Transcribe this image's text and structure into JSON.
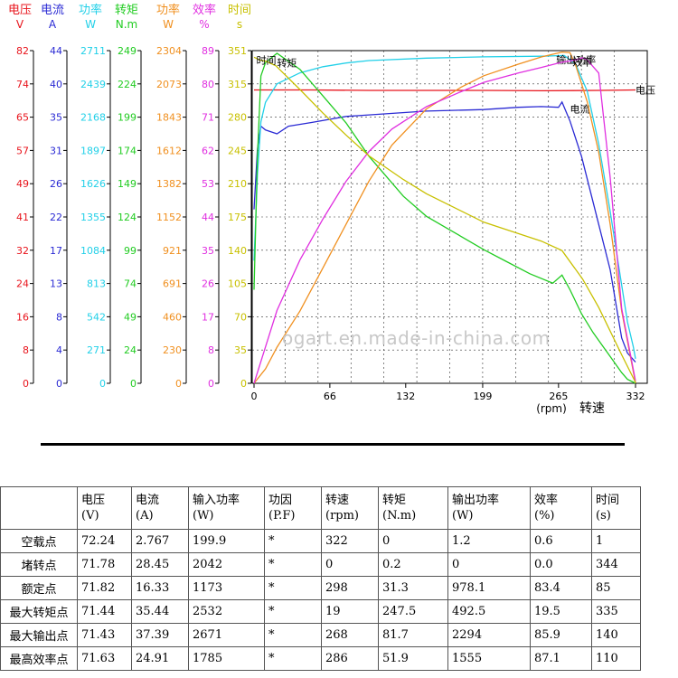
{
  "chart_data": {
    "type": "line",
    "x_label": "(rpm) 转速",
    "x_axis_label_parts": [
      "(rpm)",
      "转速"
    ],
    "x_ticks": [
      0,
      66,
      132,
      199,
      265,
      332
    ],
    "xlim": [
      0,
      332
    ],
    "grid": true,
    "axes": [
      {
        "key": "voltage",
        "title": "电压",
        "unit": "V",
        "color": "#e8141c",
        "ticks": [
          "0",
          "8",
          "16",
          "24",
          "32",
          "41",
          "49",
          "57",
          "65",
          "74",
          "82"
        ]
      },
      {
        "key": "current",
        "title": "电流",
        "unit": "A",
        "color": "#2a2ad4",
        "ticks": [
          "0",
          "4",
          "8",
          "13",
          "17",
          "22",
          "26",
          "31",
          "35",
          "40",
          "44"
        ]
      },
      {
        "key": "input_power",
        "title": "功率",
        "unit": "W",
        "color": "#22d0e8",
        "ticks": [
          "0",
          "271",
          "542",
          "813",
          "1084",
          "1355",
          "1626",
          "1897",
          "2168",
          "2439",
          "2711"
        ]
      },
      {
        "key": "torque",
        "title": "转矩",
        "unit": "N.m",
        "color": "#22cc22",
        "ticks": [
          "0",
          "24",
          "49",
          "74",
          "99",
          "124",
          "149",
          "174",
          "199",
          "224",
          "249"
        ]
      },
      {
        "key": "output_power",
        "title": "功率",
        "unit": "W",
        "color": "#f09020",
        "ticks": [
          "0",
          "230",
          "460",
          "691",
          "921",
          "1152",
          "1382",
          "1612",
          "1843",
          "2073",
          "2304"
        ]
      },
      {
        "key": "efficiency",
        "title": "效率",
        "unit": "%",
        "color": "#e030e0",
        "ticks": [
          "0",
          "8",
          "17",
          "26",
          "35",
          "44",
          "53",
          "62",
          "71",
          "80",
          "89"
        ]
      },
      {
        "key": "time",
        "title": "时间",
        "unit": "s",
        "color": "#c8c000",
        "ticks": [
          "0",
          "35",
          "70",
          "105",
          "140",
          "175",
          "210",
          "245",
          "280",
          "315",
          "351"
        ]
      }
    ],
    "series": [
      {
        "name": "电压",
        "color": "#e8141c",
        "axis": "voltage",
        "x": [
          0,
          50,
          100,
          150,
          200,
          250,
          300,
          332
        ],
        "y": [
          72.3,
          72.3,
          72.2,
          72.2,
          72.2,
          72.1,
          72.2,
          72.3
        ]
      },
      {
        "name": "电流",
        "color": "#2a2ad4",
        "axis": "current",
        "x": [
          0,
          3,
          6,
          10,
          20,
          30,
          50,
          80,
          100,
          150,
          200,
          230,
          250,
          265,
          268,
          275,
          285,
          295,
          310,
          320,
          325,
          332
        ],
        "y": [
          23,
          31,
          34,
          33.5,
          33,
          34,
          34.5,
          35.3,
          35.5,
          36,
          36.2,
          36.5,
          36.6,
          36.5,
          37.2,
          34.7,
          30,
          24,
          15,
          6,
          4,
          2.8
        ],
        "label_x": 275,
        "label_y": 36.3
      },
      {
        "name": "功率",
        "color": "#22d0e8",
        "axis": "input_power",
        "x": [
          0,
          3,
          6,
          10,
          20,
          40,
          60,
          80,
          100,
          150,
          200,
          250,
          270,
          280,
          290,
          300,
          310,
          320,
          325,
          330,
          332
        ],
        "y": [
          1000,
          1700,
          2130,
          2290,
          2440,
          2530,
          2580,
          2610,
          2630,
          2650,
          2660,
          2665,
          2671,
          2600,
          2380,
          1950,
          1400,
          800,
          500,
          300,
          200
        ]
      },
      {
        "name": "转矩",
        "color": "#22cc22",
        "axis": "torque",
        "x": [
          0,
          3,
          6,
          10,
          20,
          40,
          60,
          80,
          100,
          130,
          150,
          180,
          200,
          220,
          240,
          260,
          268,
          275,
          285,
          295,
          310,
          320,
          325,
          332
        ],
        "y": [
          70,
          170,
          230,
          240,
          247,
          235,
          215,
          195,
          170,
          140,
          125,
          110,
          100,
          91,
          82,
          75,
          81,
          70,
          52,
          38,
          20,
          8,
          3,
          0
        ],
        "label_x": 20,
        "label_y": 240
      },
      {
        "name": "输出功率",
        "color": "#f09020",
        "axis": "output_power",
        "x": [
          0,
          10,
          20,
          40,
          60,
          80,
          100,
          120,
          150,
          180,
          200,
          230,
          250,
          268,
          275,
          280,
          290,
          300,
          310,
          320,
          332
        ],
        "y": [
          0,
          100,
          250,
          500,
          800,
          1100,
          1400,
          1650,
          1900,
          2050,
          2130,
          2210,
          2260,
          2294,
          2290,
          2200,
          1950,
          1600,
          1100,
          500,
          1
        ],
        "label_x": 263,
        "label_y": 2240
      },
      {
        "name": "效率",
        "color": "#e030e0",
        "axis": "efficiency",
        "x": [
          0,
          20,
          40,
          60,
          80,
          100,
          120,
          150,
          180,
          200,
          230,
          250,
          268,
          280,
          286,
          290,
          300,
          310,
          320,
          332
        ],
        "y": [
          0,
          19.5,
          33,
          44,
          54,
          62,
          68,
          74,
          78,
          80.5,
          83,
          84.5,
          85.9,
          86.5,
          87.1,
          86.5,
          83,
          55,
          20,
          0.6
        ],
        "label_x": 277,
        "label_y": 86
      },
      {
        "name": "时间",
        "color": "#c8c000",
        "axis": "time",
        "x": [
          0,
          2,
          5,
          10,
          19,
          40,
          60,
          80,
          100,
          130,
          150,
          200,
          250,
          268,
          286,
          300,
          320,
          332
        ],
        "y": [
          344,
          343,
          341,
          340,
          335,
          310,
          285,
          262,
          240,
          215,
          200,
          170,
          150,
          140,
          110,
          80,
          30,
          1
        ],
        "label_x": 2,
        "label_y": 341
      }
    ],
    "watermark": "ogart.en.made-in-china.com"
  },
  "table": {
    "headers": [
      {
        "name": "",
        "unit": ""
      },
      {
        "name": "电压",
        "unit": "(V)"
      },
      {
        "name": "电流",
        "unit": "(A)"
      },
      {
        "name": "输入功率",
        "unit": "(W)"
      },
      {
        "name": "功因",
        "unit": "(P.F)"
      },
      {
        "name": "转速",
        "unit": "(rpm)"
      },
      {
        "name": "转矩",
        "unit": "(N.m)"
      },
      {
        "name": "输出功率",
        "unit": "(W)"
      },
      {
        "name": "效率",
        "unit": "(%)"
      },
      {
        "name": "时间",
        "unit": "(s)"
      }
    ],
    "rows": [
      [
        "空载点",
        "72.24",
        "2.767",
        "199.9",
        "*",
        "322",
        "0",
        "1.2",
        "0.6",
        "1"
      ],
      [
        "堵转点",
        "71.78",
        "28.45",
        "2042",
        "*",
        "0",
        "0.2",
        "0",
        "0.0",
        "344"
      ],
      [
        "额定点",
        "71.82",
        "16.33",
        "1173",
        "*",
        "298",
        "31.3",
        "978.1",
        "83.4",
        "85"
      ],
      [
        "最大转矩点",
        "71.44",
        "35.44",
        "2532",
        "*",
        "19",
        "247.5",
        "492.5",
        "19.5",
        "335"
      ],
      [
        "最大输出点",
        "71.43",
        "37.39",
        "2671",
        "*",
        "268",
        "81.7",
        "2294",
        "85.9",
        "140"
      ],
      [
        "最高效率点",
        "71.63",
        "24.91",
        "1785",
        "*",
        "286",
        "51.9",
        "1555",
        "87.1",
        "110"
      ]
    ]
  }
}
